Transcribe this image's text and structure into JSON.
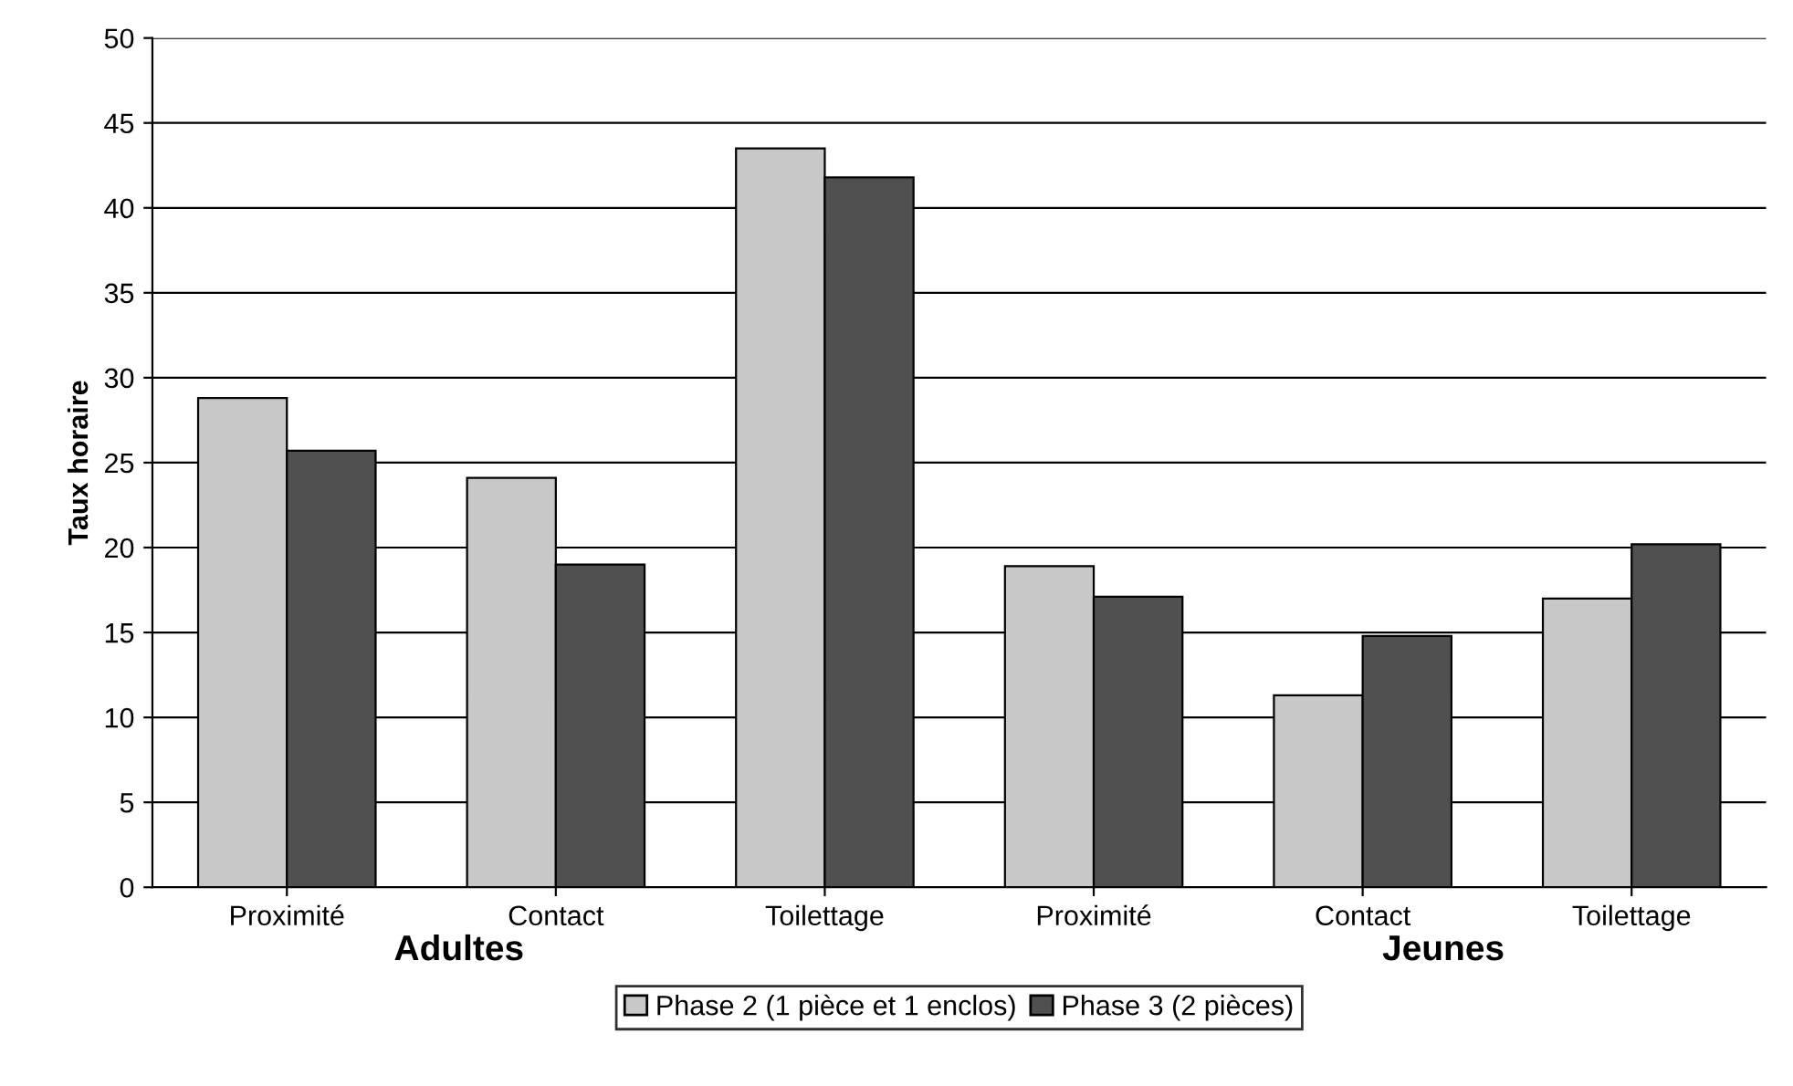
{
  "chart_data": {
    "type": "bar",
    "ylabel": "Taux horaire",
    "categories": [
      "Proximité",
      "Contact",
      "Toilettage",
      "Proximité",
      "Contact",
      "Toilettage"
    ],
    "series": [
      {
        "name": "Phase 2 (1 pièce et 1 enclos)",
        "color": "#c8c8c8",
        "values": [
          28.8,
          24.1,
          43.5,
          18.9,
          11.3,
          17.0
        ]
      },
      {
        "name": "Phase 3 (2 pièces)",
        "color": "#505050",
        "values": [
          25.7,
          19.0,
          41.8,
          17.1,
          14.8,
          20.2
        ]
      }
    ],
    "ylim": [
      0,
      50
    ],
    "yticks": [
      0,
      5,
      10,
      15,
      20,
      25,
      30,
      35,
      40,
      45,
      50
    ],
    "grid": "y",
    "legend": "bottom",
    "annotations": [
      "Adultes",
      "Jeunes"
    ]
  }
}
